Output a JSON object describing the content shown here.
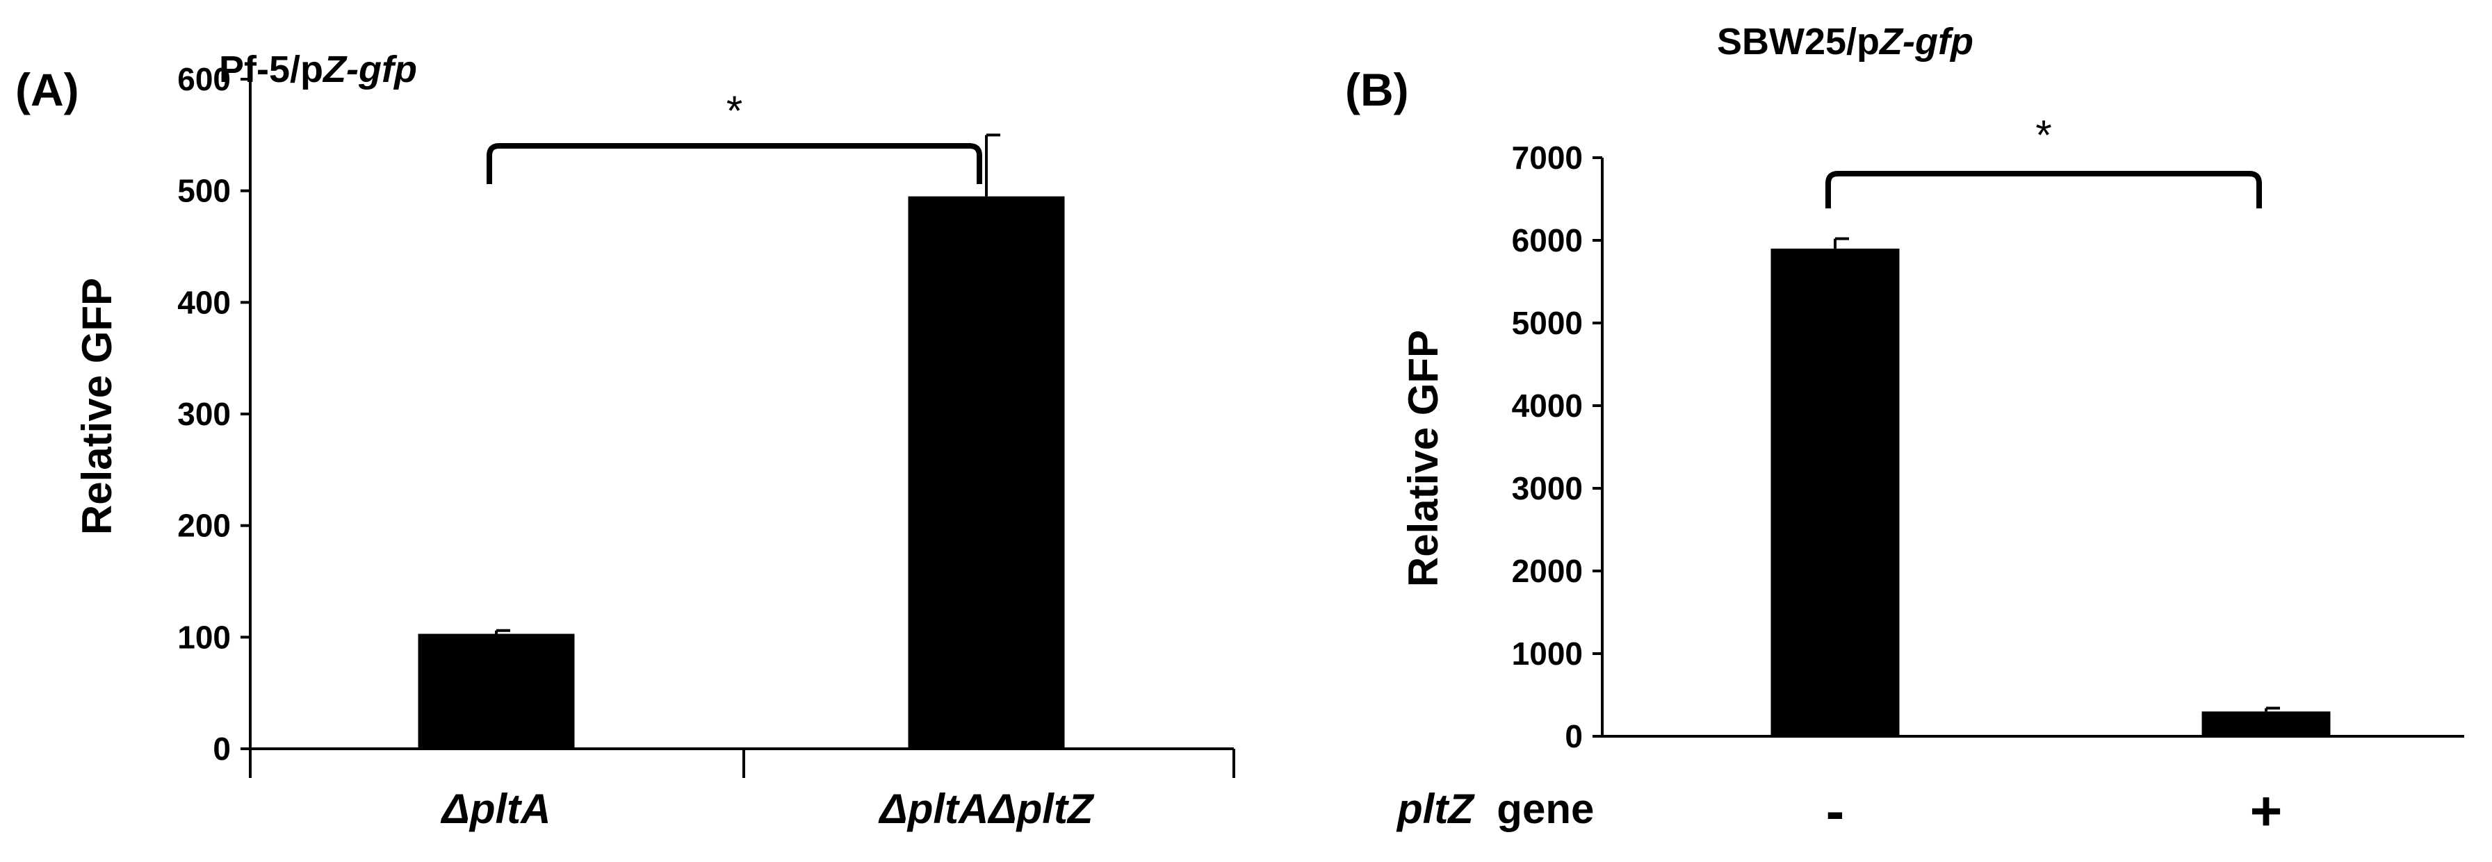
{
  "colors": {
    "bar": "#000000",
    "axis": "#000000",
    "background": "#ffffff"
  },
  "chart_data": [
    {
      "type": "bar",
      "panel": "(A)",
      "title": "Pf-5/pZ-gfp",
      "title_parts": [
        {
          "text": "Pf-5/p",
          "italic": false
        },
        {
          "text": "Z-gfp",
          "italic": true
        }
      ],
      "xlabel": "",
      "ylabel": "Relative GFP",
      "ylim": [
        0,
        600
      ],
      "yticks": [
        0,
        100,
        200,
        300,
        400,
        500,
        600
      ],
      "categories": [
        "ΔpltA",
        "ΔpltAΔpltZ"
      ],
      "values": [
        103,
        495
      ],
      "errors": [
        3,
        55
      ],
      "grid": false,
      "annotations": [
        {
          "text": "*",
          "between": [
            0,
            1
          ]
        }
      ]
    },
    {
      "type": "bar",
      "panel": "(B)",
      "title": "SBW25/pZ-gfp",
      "title_parts": [
        {
          "text": "SBW25/p",
          "italic": false
        },
        {
          "text": "Z-gfp",
          "italic": true
        }
      ],
      "xlabel": "pltZ  gene",
      "xlabel_parts": [
        {
          "text": "pltZ",
          "italic": true
        },
        {
          "text": "  gene",
          "italic": false
        }
      ],
      "ylabel": "Relative GFP",
      "ylim": [
        0,
        7000
      ],
      "yticks": [
        0,
        1000,
        2000,
        3000,
        4000,
        5000,
        6000,
        7000
      ],
      "categories": [
        "-",
        "+"
      ],
      "values": [
        5900,
        300
      ],
      "errors": [
        120,
        40
      ],
      "grid": false,
      "annotations": [
        {
          "text": "*",
          "between": [
            0,
            1
          ]
        }
      ]
    }
  ]
}
